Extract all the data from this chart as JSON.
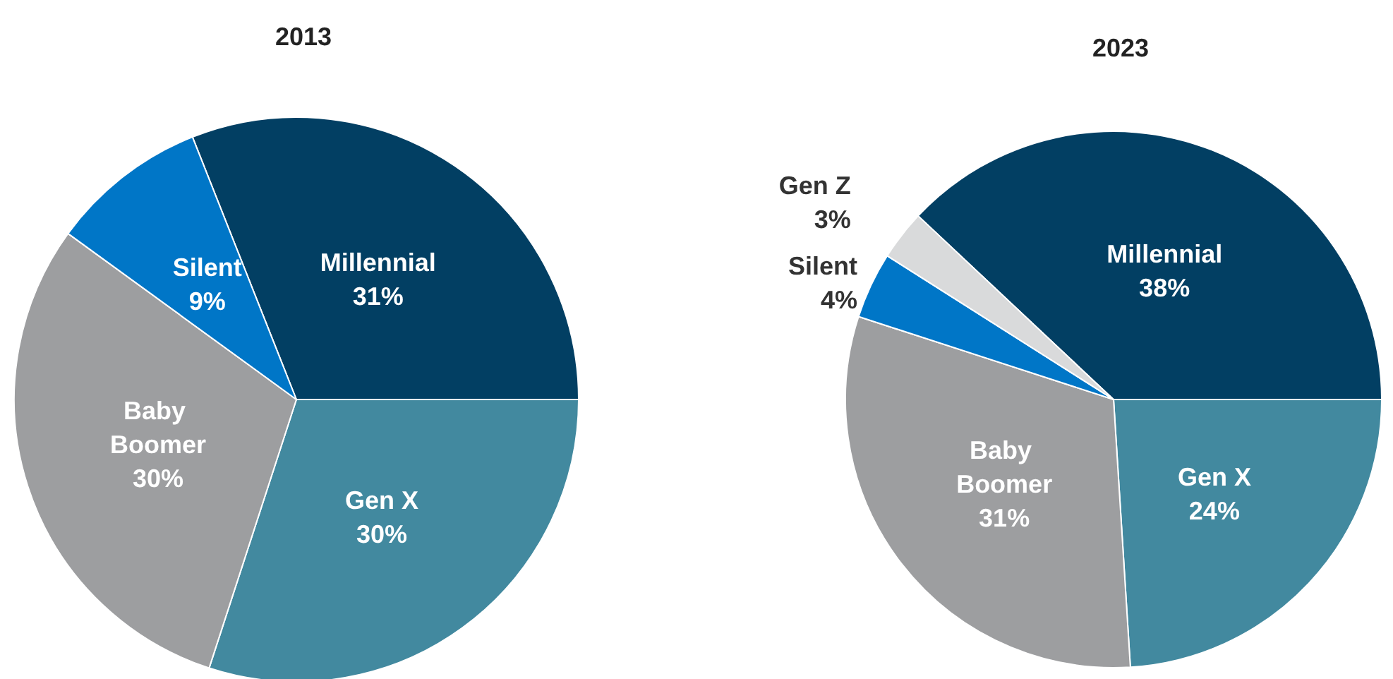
{
  "chart_data": [
    {
      "type": "pie",
      "title": "2013",
      "categories": [
        "Millennial",
        "Gen X",
        "Baby Boomer",
        "Silent"
      ],
      "values": [
        31,
        30,
        30,
        9
      ],
      "value_labels": [
        "31%",
        "30%",
        "30%",
        "9%"
      ],
      "colors": [
        "#023f63",
        "#42899f",
        "#9d9ea0",
        "#0076c7"
      ]
    },
    {
      "type": "pie",
      "title": "2023",
      "categories": [
        "Millennial",
        "Gen X",
        "Baby Boomer",
        "Silent",
        "Gen Z"
      ],
      "values": [
        38,
        24,
        31,
        4,
        3
      ],
      "value_labels": [
        "38%",
        "24%",
        "31%",
        "4%",
        "3%"
      ],
      "colors": [
        "#023f63",
        "#42899f",
        "#9d9ea0",
        "#0076c7",
        "#d9dadb"
      ]
    }
  ]
}
